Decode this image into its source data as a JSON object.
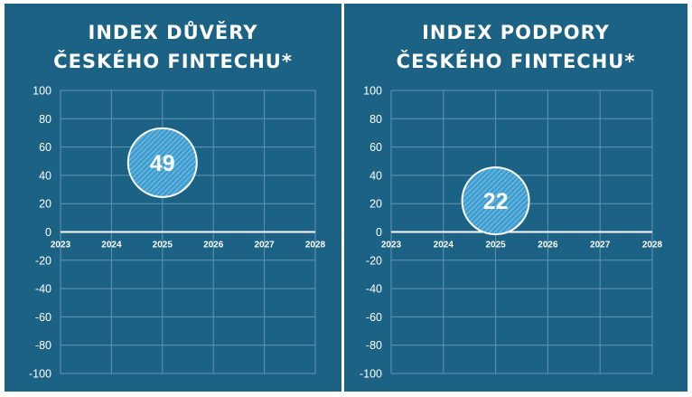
{
  "colors": {
    "panel_bg": "#1b6285",
    "grid": "#5f97b6",
    "axis": "#ffffff",
    "bubble_fill": "#3f9ccf",
    "bubble_stripe": "#8ccbec",
    "bubble_border": "#ffffff"
  },
  "chart_data": [
    {
      "type": "scatter",
      "title_lines": [
        "INDEX DŮVĚRY",
        "ČESKÉHO FINTECHU*"
      ],
      "x_ticks": [
        "2023",
        "2024",
        "2025",
        "2026",
        "2027",
        "2028"
      ],
      "y_ticks": [
        "100",
        "80",
        "60",
        "40",
        "20",
        "0",
        "-20",
        "-40",
        "-60",
        "-80",
        "-100"
      ],
      "xlim": [
        2023,
        2028
      ],
      "ylim": [
        -100,
        100
      ],
      "grid": true,
      "points": [
        {
          "x": 2025,
          "y": 49,
          "label": "49"
        }
      ]
    },
    {
      "type": "scatter",
      "title_lines": [
        "INDEX PODPORY",
        "ČESKÉHO FINTECHU*"
      ],
      "x_ticks": [
        "2023",
        "2024",
        "2025",
        "2026",
        "2027",
        "2028"
      ],
      "y_ticks": [
        "100",
        "80",
        "60",
        "40",
        "20",
        "0",
        "-20",
        "-40",
        "-60",
        "-80",
        "-100"
      ],
      "xlim": [
        2023,
        2028
      ],
      "ylim": [
        -100,
        100
      ],
      "grid": true,
      "points": [
        {
          "x": 2025,
          "y": 22,
          "label": "22"
        }
      ]
    }
  ]
}
